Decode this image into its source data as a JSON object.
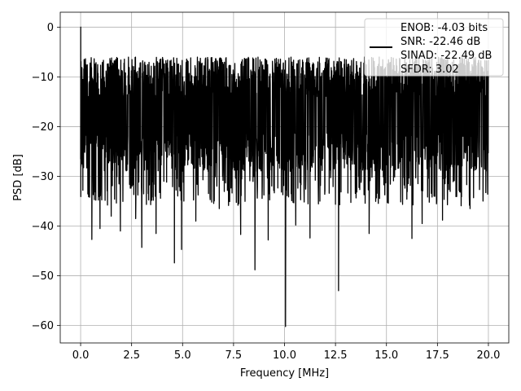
{
  "chart_data": {
    "type": "line",
    "title": "",
    "xlabel": "Frequency [MHz]",
    "ylabel": "PSD [dB]",
    "xlim": [
      -1.0,
      21.0
    ],
    "ylim": [
      -63.5,
      3.0
    ],
    "xticks": [
      0.0,
      2.5,
      5.0,
      7.5,
      10.0,
      12.5,
      15.0,
      17.5,
      20.0
    ],
    "xtick_labels": [
      "0.0",
      "2.5",
      "5.0",
      "7.5",
      "10.0",
      "12.5",
      "15.0",
      "17.5",
      "20.0"
    ],
    "yticks": [
      0,
      -10,
      -20,
      -30,
      -40,
      -50,
      -60
    ],
    "ytick_labels": [
      "0",
      "−10",
      "−20",
      "−30",
      "−40",
      "−50",
      "−60"
    ],
    "grid": true,
    "legend_position": "top-right",
    "series": [
      {
        "color": "#000000",
        "x_range": [
          0.0,
          20.0
        ],
        "noise_floor_band_db": [
          -25,
          -10
        ],
        "peak_db": 0.0,
        "dips": [
          {
            "x": 0.55,
            "y": -42.7
          },
          {
            "x": 0.95,
            "y": -40.5
          },
          {
            "x": 1.5,
            "y": -38.0
          },
          {
            "x": 1.95,
            "y": -41.0
          },
          {
            "x": 2.7,
            "y": -38.5
          },
          {
            "x": 3.0,
            "y": -44.3
          },
          {
            "x": 3.7,
            "y": -41.5
          },
          {
            "x": 4.6,
            "y": -47.4
          },
          {
            "x": 4.95,
            "y": -44.7
          },
          {
            "x": 5.65,
            "y": -39.0
          },
          {
            "x": 6.8,
            "y": -36.5
          },
          {
            "x": 7.85,
            "y": -41.7
          },
          {
            "x": 8.55,
            "y": -48.8
          },
          {
            "x": 9.2,
            "y": -42.8
          },
          {
            "x": 10.05,
            "y": -60.2
          },
          {
            "x": 10.55,
            "y": -39.8
          },
          {
            "x": 11.25,
            "y": -42.4
          },
          {
            "x": 12.65,
            "y": -53.0
          },
          {
            "x": 14.15,
            "y": -41.5
          },
          {
            "x": 16.25,
            "y": -42.5
          },
          {
            "x": 16.75,
            "y": -39.5
          },
          {
            "x": 17.75,
            "y": -38.8
          },
          {
            "x": 19.1,
            "y": -36.5
          }
        ]
      }
    ],
    "legend": {
      "lines": [
        "ENOB: -4.03 bits",
        "SNR: -22.46 dB",
        "SINAD: -22.49 dB",
        "SFDR: 3.02"
      ]
    }
  }
}
